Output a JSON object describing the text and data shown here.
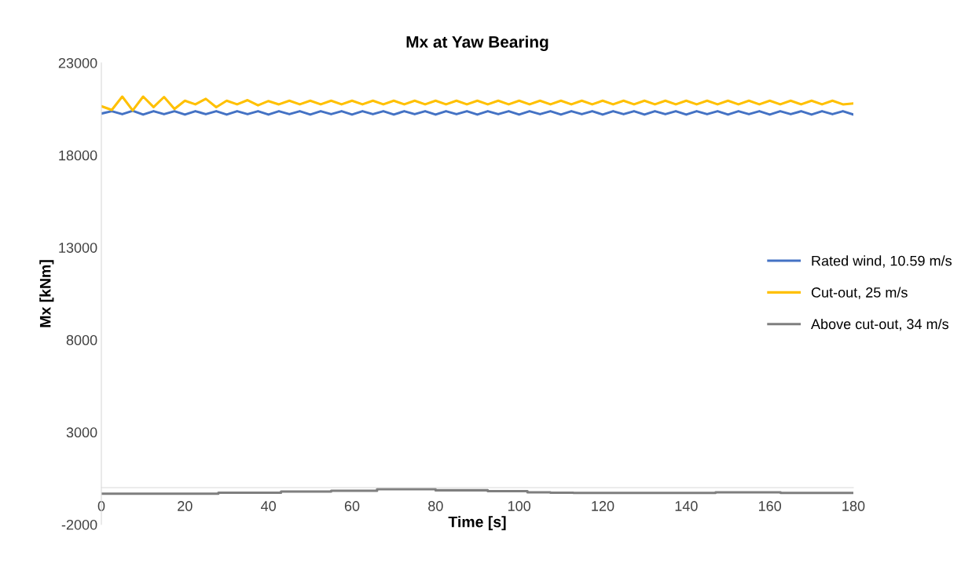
{
  "chart_data": {
    "type": "line",
    "title": "Mx at Yaw Bearing",
    "xlabel": "Time [s]",
    "ylabel": "Mx [kNm]",
    "xlim": [
      0,
      180
    ],
    "xticks": [
      0,
      20,
      40,
      60,
      80,
      100,
      120,
      140,
      160,
      180
    ],
    "ylim": [
      -2000,
      23000
    ],
    "yticks": [
      -2000,
      3000,
      8000,
      13000,
      18000,
      23000
    ],
    "grid": false,
    "legend": "right",
    "marker": "none",
    "line_style": "solid",
    "x": [
      0,
      2.5,
      5,
      7.5,
      10,
      12.5,
      15,
      17.5,
      20,
      22.5,
      25,
      27.5,
      30,
      32.5,
      35,
      37.5,
      40,
      42.5,
      45,
      47.5,
      50,
      52.5,
      55,
      57.5,
      60,
      62.5,
      65,
      67.5,
      70,
      72.5,
      75,
      77.5,
      80,
      82.5,
      85,
      87.5,
      90,
      92.5,
      95,
      97.5,
      100,
      102.5,
      105,
      107.5,
      110,
      112.5,
      115,
      117.5,
      120,
      122.5,
      125,
      127.5,
      130,
      132.5,
      135,
      137.5,
      140,
      142.5,
      145,
      147.5,
      150,
      152.5,
      155,
      157.5,
      160,
      162.5,
      165,
      167.5,
      170,
      172.5,
      175,
      177.5,
      180
    ],
    "series": [
      {
        "name": "Rated wind, 10.59 m/s",
        "color": "#4472c4",
        "values": [
          20250,
          20380,
          20220,
          20400,
          20200,
          20380,
          20220,
          20380,
          20200,
          20380,
          20220,
          20380,
          20200,
          20380,
          20220,
          20380,
          20200,
          20380,
          20220,
          20380,
          20200,
          20380,
          20220,
          20380,
          20200,
          20380,
          20220,
          20380,
          20200,
          20380,
          20220,
          20380,
          20200,
          20380,
          20220,
          20380,
          20200,
          20380,
          20220,
          20380,
          20200,
          20380,
          20220,
          20380,
          20200,
          20380,
          20220,
          20380,
          20200,
          20380,
          20220,
          20380,
          20200,
          20380,
          20220,
          20380,
          20200,
          20380,
          20220,
          20380,
          20200,
          20380,
          20220,
          20380,
          20200,
          20380,
          20220,
          20380,
          20200,
          20380,
          20220,
          20380,
          20200
        ]
      },
      {
        "name": "Cut-out, 25 m/s",
        "color": "#ffc000",
        "values": [
          20650,
          20450,
          21170,
          20420,
          21170,
          20600,
          21150,
          20500,
          20950,
          20750,
          21050,
          20600,
          20950,
          20750,
          20980,
          20700,
          20930,
          20750,
          20950,
          20750,
          20950,
          20750,
          20950,
          20750,
          20950,
          20750,
          20950,
          20750,
          20950,
          20750,
          20950,
          20750,
          20950,
          20750,
          20950,
          20750,
          20950,
          20750,
          20950,
          20750,
          20950,
          20750,
          20950,
          20750,
          20950,
          20750,
          20950,
          20750,
          20950,
          20750,
          20950,
          20750,
          20950,
          20750,
          20950,
          20750,
          20950,
          20750,
          20950,
          20750,
          20950,
          20750,
          20950,
          20750,
          20950,
          20750,
          20950,
          20750,
          20950,
          20750,
          20950,
          20750,
          20800
        ]
      },
      {
        "name": "Above cut-out, 34 m/s",
        "color": "#7f7f7f",
        "x": [
          0,
          28,
          28,
          43,
          43,
          55,
          55,
          66,
          66,
          80,
          80,
          92.5,
          92.5,
          102,
          102,
          107.5,
          107.5,
          113,
          113,
          147,
          147,
          162.6,
          162.6,
          180
        ],
        "values": [
          -329,
          -329,
          -278,
          -278,
          -214,
          -214,
          -172,
          -172,
          -87,
          -87,
          -146,
          -146,
          -197,
          -197,
          -257,
          -257,
          -278,
          -278,
          -290,
          -290,
          -257,
          -257,
          -290,
          -290
        ]
      }
    ]
  }
}
